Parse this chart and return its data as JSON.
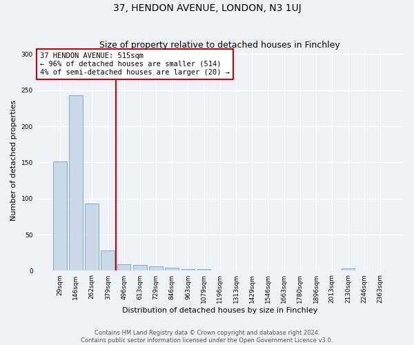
{
  "title": "37, HENDON AVENUE, LONDON, N3 1UJ",
  "subtitle": "Size of property relative to detached houses in Finchley",
  "xlabel": "Distribution of detached houses by size in Finchley",
  "ylabel": "Number of detached properties",
  "categories": [
    "29sqm",
    "146sqm",
    "262sqm",
    "379sqm",
    "496sqm",
    "613sqm",
    "729sqm",
    "846sqm",
    "963sqm",
    "1079sqm",
    "1196sqm",
    "1313sqm",
    "1429sqm",
    "1546sqm",
    "1663sqm",
    "1780sqm",
    "1896sqm",
    "2013sqm",
    "2130sqm",
    "2246sqm",
    "2363sqm"
  ],
  "values": [
    151,
    243,
    93,
    28,
    9,
    8,
    6,
    4,
    2,
    2,
    0,
    0,
    0,
    0,
    0,
    0,
    0,
    0,
    3,
    0,
    0
  ],
  "bar_color": "#c9d9e8",
  "bar_edge_color": "#7aadcf",
  "annotation_text_line1": "37 HENDON AVENUE: 515sqm",
  "annotation_text_line2": "← 96% of detached houses are smaller (514)",
  "annotation_text_line3": "4% of semi-detached houses are larger (20) →",
  "annotation_box_color": "#ffffff",
  "annotation_box_edge_color": "#cc0000",
  "vline_color": "#cc0000",
  "vline_x_index": 4,
  "ylim": [
    0,
    305
  ],
  "yticks": [
    0,
    50,
    100,
    150,
    200,
    250,
    300
  ],
  "footer_line1": "Contains HM Land Registry data © Crown copyright and database right 2024.",
  "footer_line2": "Contains public sector information licensed under the Open Government Licence v3.0.",
  "bg_color": "#eef2f7",
  "plot_bg_color": "#eef2f7",
  "grid_color": "#ffffff",
  "title_fontsize": 10,
  "subtitle_fontsize": 9,
  "xlabel_fontsize": 8,
  "ylabel_fontsize": 8,
  "tick_fontsize": 6.5,
  "footer_fontsize": 6,
  "annotation_fontsize": 7.5
}
